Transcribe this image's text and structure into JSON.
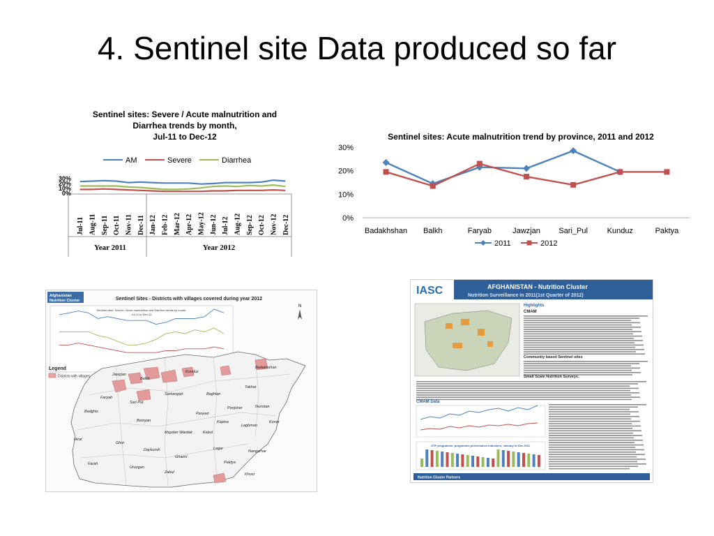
{
  "slide": {
    "title": "4. Sentinel site Data produced so far"
  },
  "chart_data": [
    {
      "type": "line",
      "title_lines": [
        "Sentinel sites: Severe / Acute malnutrition and",
        "Diarrhea trends by month,",
        "Jul-11 to Dec-12"
      ],
      "categories": [
        "Jul-11",
        "Aug-11",
        "Sep-11",
        "Oct-11",
        "Nov-11",
        "Dec-11",
        "Jan-12",
        "Feb-12",
        "Mar-12",
        "Apr-12",
        "May-12",
        "Jun-12",
        "Jul-12",
        "Aug-12",
        "Sep-12",
        "Oct-12",
        "Nov-12",
        "Dec-12"
      ],
      "group_labels": [
        {
          "label": "Year 2011",
          "start": 0,
          "end": 5
        },
        {
          "label": "Year 2012",
          "start": 6,
          "end": 17
        }
      ],
      "y_ticks": [
        "0%",
        "10%",
        "20%",
        "30%"
      ],
      "ylim": [
        0,
        30
      ],
      "legend_position": "top",
      "series": [
        {
          "name": "AM",
          "color": "#4f81bd",
          "values": [
            24,
            25,
            26,
            25,
            22,
            23,
            22,
            21,
            21,
            21,
            19,
            20,
            22,
            22,
            22,
            23,
            27,
            25
          ]
        },
        {
          "name": "Severe",
          "color": "#c0504d",
          "values": [
            8,
            8,
            9,
            8,
            7,
            6,
            5,
            4,
            4,
            4,
            4,
            5,
            5,
            6,
            6,
            6,
            7,
            6
          ]
        },
        {
          "name": "Diarrhea",
          "color": "#9bbb59",
          "values": [
            15,
            15,
            15,
            15,
            13,
            12,
            10,
            8,
            8,
            9,
            11,
            14,
            15,
            14,
            16,
            15,
            17,
            14
          ]
        }
      ]
    },
    {
      "type": "line",
      "title": "Sentinel sites:  Acute malnutrition trend by province, 2011 and 2012",
      "categories": [
        "Badakhshan",
        "Balkh",
        "Faryab",
        "Jawzjan",
        "Sari_Pul",
        "Kunduz",
        "Paktya"
      ],
      "y_ticks": [
        "0%",
        "10%",
        "20%",
        "30%"
      ],
      "ylim": [
        0,
        30
      ],
      "legend_position": "bottom",
      "series": [
        {
          "name": "2011",
          "color": "#4f81bd",
          "marker": "diamond",
          "values": [
            23.5,
            14.5,
            21.5,
            21,
            28.5,
            19.5,
            null
          ]
        },
        {
          "name": "2012",
          "color": "#c0504d",
          "marker": "square",
          "values": [
            19.5,
            13.5,
            23,
            17.5,
            14,
            19.5,
            19.5
          ]
        }
      ]
    }
  ],
  "map_thumb": {
    "org": [
      "Afghanistan",
      "Nutrition Cluster"
    ],
    "title": "Sentinel Sites - Districts with villages covered during year 2012",
    "inner_chart_title": [
      "Sentinel sites: Severe / Acute malnutrition and Diarrhea trends by month,",
      "Jul-11 to Dec-12"
    ],
    "legend_title": "Legend",
    "legend_item": "Districts with villages covered",
    "place_labels": [
      "Jawzjan",
      "Balkh",
      "Kunduz",
      "Badakhshan",
      "Faryab",
      "Samangan",
      "Baghlan",
      "Takhar",
      "Sari Pul",
      "Badghis",
      "Panjsher",
      "Nuristan",
      "Parwan",
      "Kunar",
      "Bamyan",
      "Kapisa",
      "Laghman",
      "Maydan Wardak",
      "Kabul",
      "Hirat",
      "Ghor",
      "Daykundi",
      "Ghazni",
      "Logar",
      "Nangarhar",
      "Uruzgan",
      "Paktya",
      "Khost",
      "Farah",
      "Zabul"
    ]
  },
  "poster_thumb": {
    "logo": "IASC",
    "banner_title": "AFGHANISTAN - Nutrition Cluster",
    "banner_subtitle": "Nutrition Surveillance in 2011(1st Quarter of 2012)",
    "highlights": "Highlights",
    "cmam": "CMAM",
    "section_community": "Community based Sentinel sites",
    "section_small": "Small Scale Nutrition Surveys.",
    "section_cmam_data": "CMAM Data",
    "chart_title": "OTP programme: programme performance indicators, January to Dec 2011",
    "footer": "Nutrition Cluster Partners"
  }
}
